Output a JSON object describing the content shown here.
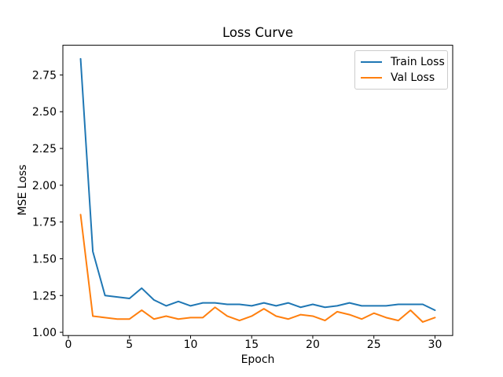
{
  "figure": {
    "background": "#ffffff"
  },
  "chart_data": {
    "type": "line",
    "title": "Loss Curve",
    "xlabel": "Epoch",
    "ylabel": "MSE Loss",
    "x": [
      1,
      2,
      3,
      4,
      5,
      6,
      7,
      8,
      9,
      10,
      11,
      12,
      13,
      14,
      15,
      16,
      17,
      18,
      19,
      20,
      21,
      22,
      23,
      24,
      25,
      26,
      27,
      28,
      29,
      30
    ],
    "series": [
      {
        "name": "Train Loss",
        "color": "#1f77b4",
        "values": [
          2.86,
          1.55,
          1.25,
          1.24,
          1.23,
          1.3,
          1.22,
          1.18,
          1.21,
          1.18,
          1.2,
          1.2,
          1.19,
          1.19,
          1.18,
          1.2,
          1.18,
          1.2,
          1.17,
          1.19,
          1.17,
          1.18,
          1.2,
          1.18,
          1.18,
          1.18,
          1.19,
          1.19,
          1.19,
          1.15
        ]
      },
      {
        "name": "Val Loss",
        "color": "#ff7f0e",
        "values": [
          1.8,
          1.11,
          1.1,
          1.09,
          1.09,
          1.15,
          1.09,
          1.11,
          1.09,
          1.1,
          1.1,
          1.17,
          1.11,
          1.08,
          1.11,
          1.16,
          1.11,
          1.09,
          1.12,
          1.11,
          1.08,
          1.14,
          1.12,
          1.09,
          1.13,
          1.1,
          1.08,
          1.15,
          1.07,
          1.1
        ]
      }
    ],
    "xlim": [
      -0.45,
      31.45
    ],
    "ylim": [
      0.978,
      2.952
    ],
    "xticks": [
      "0",
      "5",
      "10",
      "15",
      "20",
      "25",
      "30"
    ],
    "yticks": [
      "1.00",
      "1.25",
      "1.50",
      "1.75",
      "2.00",
      "2.25",
      "2.50",
      "2.75"
    ],
    "grid": false,
    "legend_position": "upper right",
    "axes_color": "#000000"
  }
}
